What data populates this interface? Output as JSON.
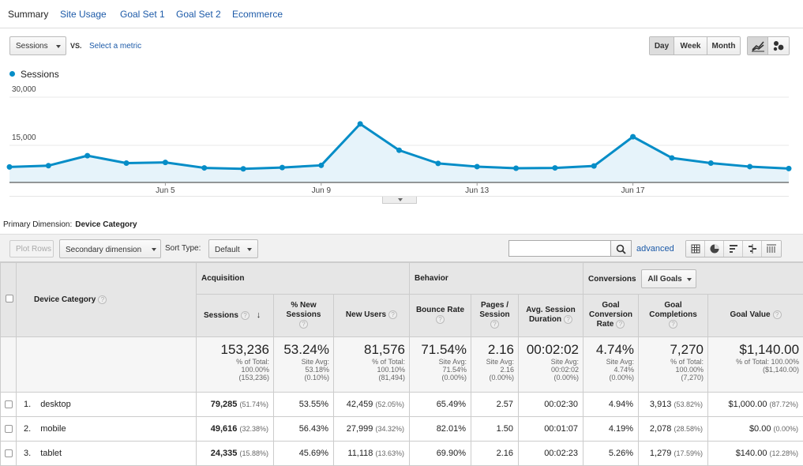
{
  "tabs": [
    "Summary",
    "Site Usage",
    "Goal Set 1",
    "Goal Set 2",
    "Ecommerce"
  ],
  "controls": {
    "metric_select": "Sessions",
    "vs_label": "VS.",
    "select_metric_link": "Select a metric",
    "periods": [
      "Day",
      "Week",
      "Month"
    ],
    "active_period": "Day",
    "views": [
      "line-chart-icon",
      "motion-chart-icon"
    ]
  },
  "legend": {
    "series": "Sessions",
    "color": "#058dc7"
  },
  "chart_data": {
    "type": "area",
    "series": [
      {
        "name": "Sessions",
        "values": [
          6800,
          7200,
          10300,
          8000,
          8200,
          6500,
          6200,
          6600,
          7300,
          20200,
          12000,
          7900,
          6900,
          6400,
          6500,
          7100,
          16200,
          9600,
          8000,
          6900,
          6300
        ]
      }
    ],
    "x": [
      "Jun 1",
      "Jun 2",
      "Jun 3",
      "Jun 4",
      "Jun 5",
      "Jun 6",
      "Jun 7",
      "Jun 8",
      "Jun 9",
      "Jun 10",
      "Jun 11",
      "Jun 12",
      "Jun 13",
      "Jun 14",
      "Jun 15",
      "Jun 16",
      "Jun 17",
      "Jun 18",
      "Jun 19",
      "Jun 20",
      "Jun 21"
    ],
    "x_tick_labels": [
      "Jun 5",
      "Jun 9",
      "Jun 13",
      "Jun 17"
    ],
    "y_tick_labels": [
      "30,000",
      "15,000"
    ],
    "y_ticks": [
      30000,
      15000
    ],
    "ylim": [
      0,
      30000
    ],
    "grid": true
  },
  "primary_dimension": {
    "label": "Primary Dimension:",
    "value": "Device Category"
  },
  "toolbar": {
    "plot_rows": "Plot Rows",
    "secondary_dimension": "Secondary dimension",
    "sort_type_label": "Sort Type:",
    "sort_type_value": "Default",
    "search_placeholder": "",
    "advanced": "advanced",
    "table_views": [
      "table-icon",
      "pie-icon",
      "bar-icon",
      "comparison-icon",
      "pivot-icon"
    ]
  },
  "table": {
    "dimension_header": "Device Category",
    "groups": {
      "acquisition": "Acquisition",
      "behavior": "Behavior",
      "conversions": "Conversions",
      "goals_select": "All Goals"
    },
    "columns": {
      "sessions": "Sessions",
      "new_sessions": "% New Sessions",
      "new_users": "New Users",
      "bounce_rate": "Bounce Rate",
      "pages_session": "Pages / Session",
      "avg_session": "Avg. Session Duration",
      "goal_conv_rate": "Goal Conversion Rate",
      "goal_completions": "Goal Completions",
      "goal_value": "Goal Value"
    },
    "totals": {
      "sessions": {
        "value": "153,236",
        "l1": "% of Total:",
        "l2": "100.00%",
        "l3": "(153,236)"
      },
      "new_sessions": {
        "value": "53.24%",
        "l1": "Site Avg:",
        "l2": "53.18%",
        "l3": "(0.10%)"
      },
      "new_users": {
        "value": "81,576",
        "l1": "% of Total:",
        "l2": "100.10%",
        "l3": "(81,494)"
      },
      "bounce_rate": {
        "value": "71.54%",
        "l1": "Site Avg:",
        "l2": "71.54%",
        "l3": "(0.00%)"
      },
      "pages_session": {
        "value": "2.16",
        "l1": "Site Avg:",
        "l2": "2.16",
        "l3": "(0.00%)"
      },
      "avg_session": {
        "value": "00:02:02",
        "l1": "Site Avg:",
        "l2": "00:02:02",
        "l3": "(0.00%)"
      },
      "goal_conv_rate": {
        "value": "4.74%",
        "l1": "Site Avg:",
        "l2": "4.74%",
        "l3": "(0.00%)"
      },
      "goal_completions": {
        "value": "7,270",
        "l1": "% of Total:",
        "l2": "100.00%",
        "l3": "(7,270)"
      },
      "goal_value": {
        "value": "$1,140.00",
        "l1": "% of Total: 100.00%",
        "l2": "($1,140.00)",
        "l3": ""
      }
    },
    "rows": [
      {
        "index": "1.",
        "name": "desktop",
        "sessions": "79,285",
        "sessions_pct": "(51.74%)",
        "new_sessions": "53.55%",
        "new_users": "42,459",
        "new_users_pct": "(52.05%)",
        "bounce_rate": "65.49%",
        "pages_session": "2.57",
        "avg_session": "00:02:30",
        "goal_conv_rate": "4.94%",
        "goal_completions": "3,913",
        "goal_completions_pct": "(53.82%)",
        "goal_value": "$1,000.00",
        "goal_value_pct": "(87.72%)"
      },
      {
        "index": "2.",
        "name": "mobile",
        "sessions": "49,616",
        "sessions_pct": "(32.38%)",
        "new_sessions": "56.43%",
        "new_users": "27,999",
        "new_users_pct": "(34.32%)",
        "bounce_rate": "82.01%",
        "pages_session": "1.50",
        "avg_session": "00:01:07",
        "goal_conv_rate": "4.19%",
        "goal_completions": "2,078",
        "goal_completions_pct": "(28.58%)",
        "goal_value": "$0.00",
        "goal_value_pct": "(0.00%)"
      },
      {
        "index": "3.",
        "name": "tablet",
        "sessions": "24,335",
        "sessions_pct": "(15.88%)",
        "new_sessions": "45.69%",
        "new_users": "11,118",
        "new_users_pct": "(13.63%)",
        "bounce_rate": "69.90%",
        "pages_session": "2.16",
        "avg_session": "00:02:23",
        "goal_conv_rate": "5.26%",
        "goal_completions": "1,279",
        "goal_completions_pct": "(17.59%)",
        "goal_value": "$140.00",
        "goal_value_pct": "(12.28%)"
      }
    ]
  }
}
